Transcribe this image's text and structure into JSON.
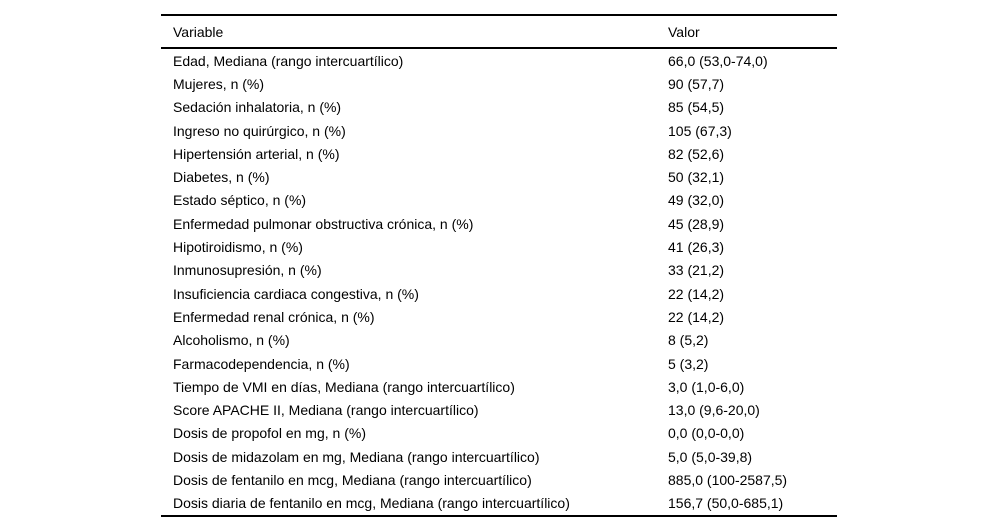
{
  "colors": {
    "background": "#ffffff",
    "text": "#000000",
    "rule": "#000000"
  },
  "table": {
    "headers": [
      "Variable",
      "Valor"
    ],
    "rows": [
      {
        "variable": "Edad, Mediana (rango intercuartílico)",
        "valor": "66,0 (53,0-74,0)"
      },
      {
        "variable": "Mujeres, n (%)",
        "valor": "90 (57,7)"
      },
      {
        "variable": "Sedación inhalatoria, n (%)",
        "valor": "85 (54,5)"
      },
      {
        "variable": "Ingreso no quirúrgico, n (%)",
        "valor": "105 (67,3)"
      },
      {
        "variable": "Hipertensión arterial, n (%)",
        "valor": "82 (52,6)"
      },
      {
        "variable": "Diabetes, n (%)",
        "valor": "50 (32,1)"
      },
      {
        "variable": "Estado séptico, n (%)",
        "valor": "49 (32,0)"
      },
      {
        "variable": "Enfermedad pulmonar obstructiva crónica, n (%)",
        "valor": "45 (28,9)"
      },
      {
        "variable": "Hipotiroidismo, n (%)",
        "valor": "41 (26,3)"
      },
      {
        "variable": "Inmunosupresión, n (%)",
        "valor": "33 (21,2)"
      },
      {
        "variable": "Insuficiencia cardiaca congestiva, n (%)",
        "valor": "22 (14,2)"
      },
      {
        "variable": "Enfermedad renal crónica, n (%)",
        "valor": "22 (14,2)"
      },
      {
        "variable": "Alcoholismo, n (%)",
        "valor": "8 (5,2)"
      },
      {
        "variable": "Farmacodependencia, n (%)",
        "valor": "5 (3,2)"
      },
      {
        "variable": "Tiempo de VMI en días, Mediana (rango intercuartílico)",
        "valor": "3,0 (1,0-6,0)"
      },
      {
        "variable": "Score APACHE II, Mediana (rango intercuartílico)",
        "valor": "13,0 (9,6-20,0)"
      },
      {
        "variable": "Dosis de propofol en mg, n (%)",
        "valor": "0,0 (0,0-0,0)"
      },
      {
        "variable": "Dosis de midazolam en mg, Mediana (rango intercuartílico)",
        "valor": "5,0 (5,0-39,8)"
      },
      {
        "variable": "Dosis de fentanilo en mcg, Mediana (rango intercuartílico)",
        "valor": "885,0 (100-2587,5)"
      },
      {
        "variable": "Dosis diaria de fentanilo en mcg, Mediana (rango intercuartílico)",
        "valor": "156,7 (50,0-685,1)"
      }
    ]
  }
}
